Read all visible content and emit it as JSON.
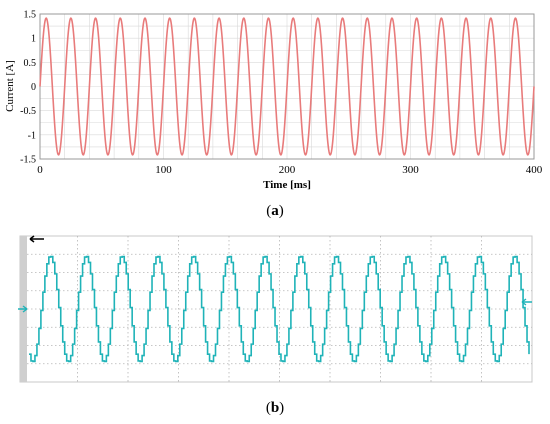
{
  "chart_data": [
    {
      "type": "line",
      "panel": "a",
      "xlabel": "Time [ms]",
      "ylabel": "Current [A]",
      "xlim": [
        0,
        400
      ],
      "ylim": [
        -1.5,
        1.5
      ],
      "xticks": [
        0,
        100,
        200,
        300,
        400
      ],
      "yticks": [
        1.5,
        1,
        0.5,
        0,
        -0.5,
        -1,
        -1.5
      ],
      "grid": true,
      "series": [
        {
          "color": "#e87b7b",
          "amplitude": 1.414,
          "frequency_hz": 50,
          "phase_deg": 0
        }
      ]
    },
    {
      "type": "line",
      "panel": "b",
      "grid": true,
      "series": [
        {
          "color": "#1fb3b8",
          "cycles": 14,
          "stepped": true
        }
      ]
    }
  ],
  "captions": {
    "a_letter": "a",
    "b_letter": "b"
  },
  "colors": {
    "trace_a": "#e87b7b",
    "trace_b": "#1fb3b8",
    "grid_b": "#b5b5b5",
    "marker": "#1fb3b8"
  }
}
